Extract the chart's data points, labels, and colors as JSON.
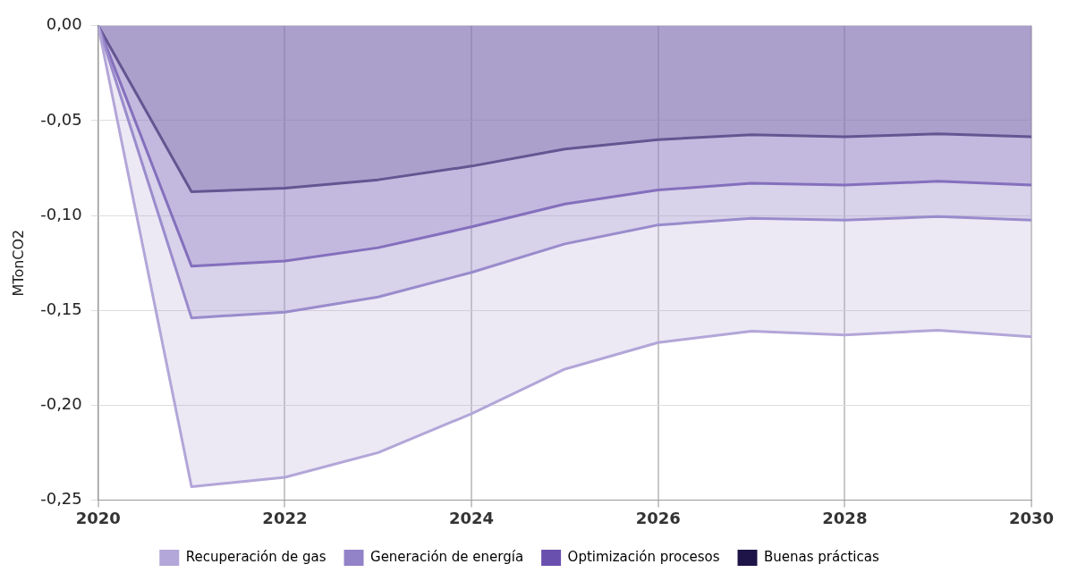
{
  "chart_data": {
    "type": "area",
    "ylabel": "MTonCO2",
    "x": [
      2020,
      2021,
      2022,
      2023,
      2024,
      2025,
      2026,
      2027,
      2028,
      2029,
      2030
    ],
    "series": [
      {
        "name": "Recuperación de gas",
        "color": "#b3a6d8",
        "values": [
          0,
          -0.243,
          -0.238,
          -0.225,
          -0.2045,
          -0.181,
          -0.167,
          -0.161,
          -0.163,
          -0.1605,
          -0.164
        ]
      },
      {
        "name": "Generación de energía",
        "color": "#9282c8",
        "values": [
          0,
          -0.154,
          -0.151,
          -0.143,
          -0.13,
          -0.115,
          -0.105,
          -0.1015,
          -0.1025,
          -0.1006,
          -0.1025
        ]
      },
      {
        "name": "Optimización procesos",
        "color": "#6a50ae",
        "values": [
          0,
          -0.1267,
          -0.124,
          -0.117,
          -0.106,
          -0.094,
          -0.0866,
          -0.083,
          -0.084,
          -0.082,
          -0.084
        ]
      },
      {
        "name": "Buenas prácticas",
        "color": "#1e1447",
        "values": [
          0,
          -0.0875,
          -0.0856,
          -0.0812,
          -0.074,
          -0.065,
          -0.06,
          -0.0575,
          -0.0585,
          -0.057,
          -0.0585
        ]
      }
    ],
    "xlim": [
      2020,
      2030
    ],
    "xticks": [
      2020,
      2022,
      2024,
      2026,
      2028,
      2030
    ],
    "ylim": [
      -0.25,
      0
    ],
    "yticks": [
      {
        "value": -0.25,
        "label": "-0,25"
      },
      {
        "value": -0.2,
        "label": "-0,20"
      },
      {
        "value": -0.15,
        "label": "-0,15"
      },
      {
        "value": -0.1,
        "label": "-0,10"
      },
      {
        "value": -0.05,
        "label": "-0,05"
      },
      {
        "value": 0,
        "label": "0,00"
      }
    ],
    "grid": true,
    "legend": "bottom",
    "marker": "none",
    "line_style": "solid"
  }
}
